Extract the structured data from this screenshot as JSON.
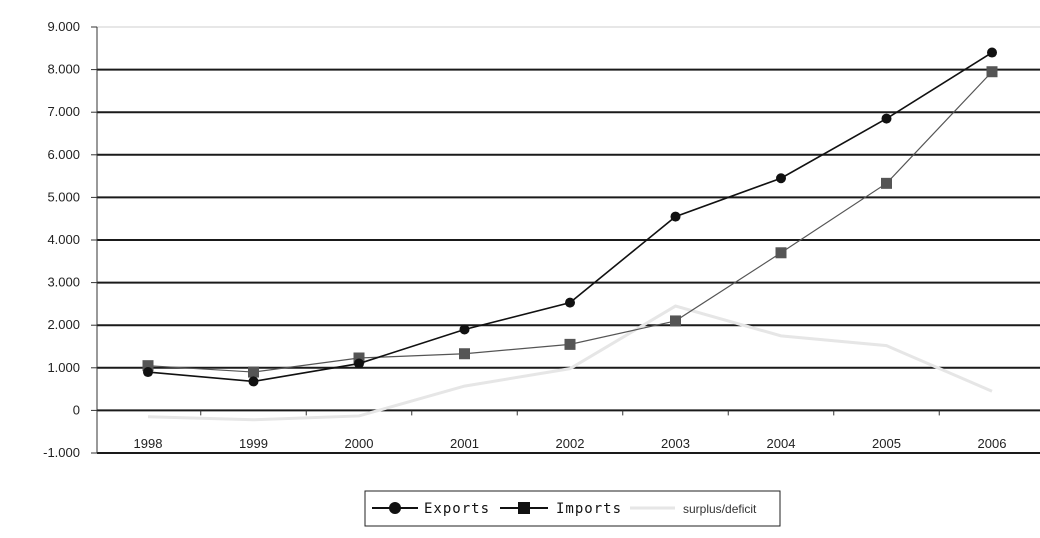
{
  "chart_data": {
    "type": "line",
    "title": "",
    "xlabel": "",
    "ylabel": "",
    "categories": [
      "1998",
      "1999",
      "2000",
      "2001",
      "2002",
      "2003",
      "2004",
      "2005",
      "2006"
    ],
    "y_ticks": [
      "-1.000",
      "0",
      "1.000",
      "2.000",
      "3.000",
      "4.000",
      "5.000",
      "6.000",
      "7.000",
      "8.000",
      "9.000"
    ],
    "ylim": [
      -1000,
      9000
    ],
    "grid": "horizontal",
    "legend_position": "bottom",
    "series": [
      {
        "name": "Exports",
        "marker": "circle",
        "color": "#111111",
        "values": [
          900,
          680,
          1100,
          1900,
          2530,
          4550,
          5450,
          6850,
          8400
        ]
      },
      {
        "name": "Imports",
        "marker": "square",
        "color": "#555555",
        "values": [
          1050,
          900,
          1230,
          1330,
          1550,
          2100,
          3700,
          5330,
          7950
        ]
      },
      {
        "name": "surplus/deficit",
        "marker": "none",
        "color": "#e6e6e6",
        "values": [
          -150,
          -220,
          -130,
          570,
          980,
          2450,
          1750,
          1520,
          450
        ]
      }
    ]
  }
}
